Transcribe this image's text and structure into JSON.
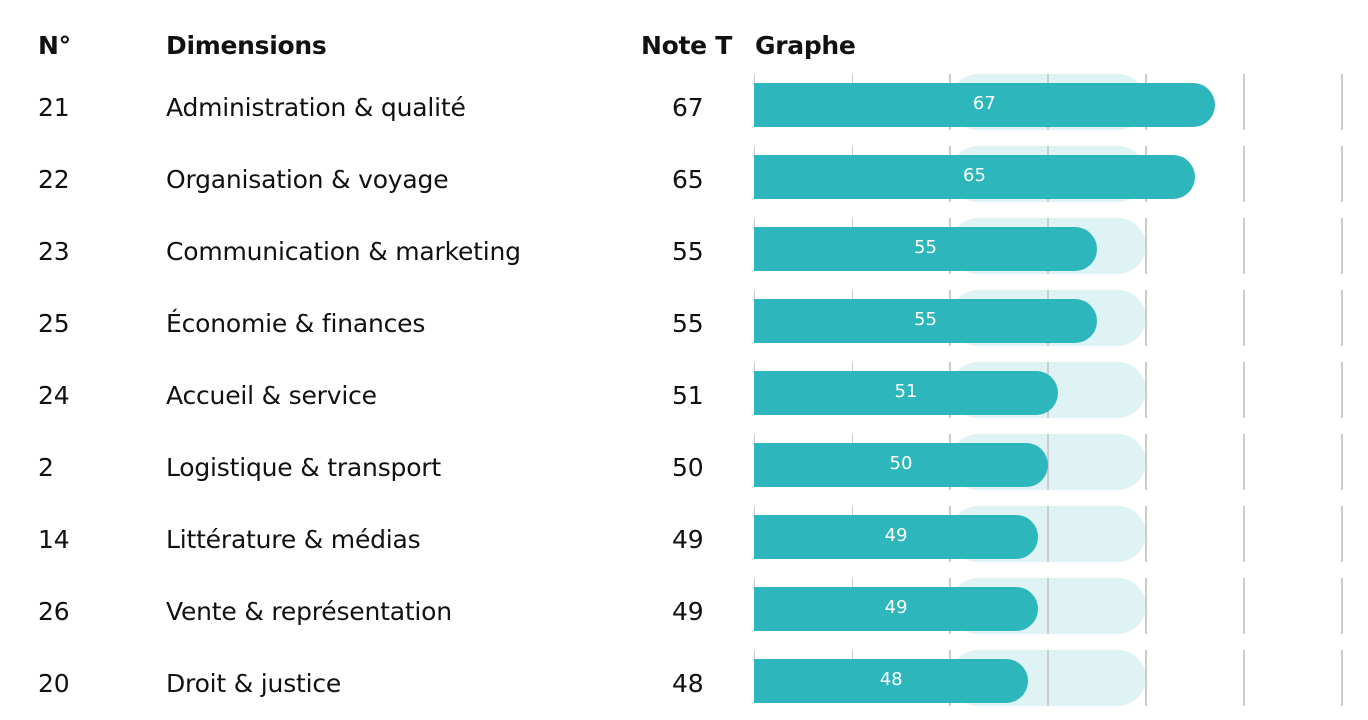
{
  "headers": {
    "num": "N°",
    "dimension": "Dimensions",
    "note": "Note T",
    "graph": "Graphe"
  },
  "colors": {
    "bar": "#2db6bb",
    "band": "#e0f3f4",
    "grid": "#cccccc"
  },
  "chart_data": {
    "type": "bar",
    "orientation": "horizontal",
    "categories": [
      "Administration & qualité",
      "Organisation & voyage",
      "Communication & marketing",
      "Économie & finances",
      "Accueil & service",
      "Logistique & transport",
      "Littérature & médias",
      "Vente & représentation",
      "Droit & justice"
    ],
    "values": [
      67,
      65,
      55,
      55,
      51,
      50,
      49,
      49,
      48
    ],
    "xlim": [
      20,
      80
    ],
    "band_range": [
      40,
      60
    ],
    "rows": [
      {
        "num": "21",
        "dimension": "Administration & qualité",
        "note": "67",
        "value": 67
      },
      {
        "num": "22",
        "dimension": "Organisation & voyage",
        "note": "65",
        "value": 65
      },
      {
        "num": "23",
        "dimension": "Communication & marketing",
        "note": "55",
        "value": 55
      },
      {
        "num": "25",
        "dimension": "Économie & finances",
        "note": "55",
        "value": 55
      },
      {
        "num": "24",
        "dimension": "Accueil & service",
        "note": "51",
        "value": 51
      },
      {
        "num": "2",
        "dimension": "Logistique & transport",
        "note": "50",
        "value": 50
      },
      {
        "num": "14",
        "dimension": "Littérature & médias",
        "note": "49",
        "value": 49
      },
      {
        "num": "26",
        "dimension": "Vente & représentation",
        "note": "49",
        "value": 49
      },
      {
        "num": "20",
        "dimension": "Droit & justice",
        "note": "48",
        "value": 48
      }
    ]
  }
}
